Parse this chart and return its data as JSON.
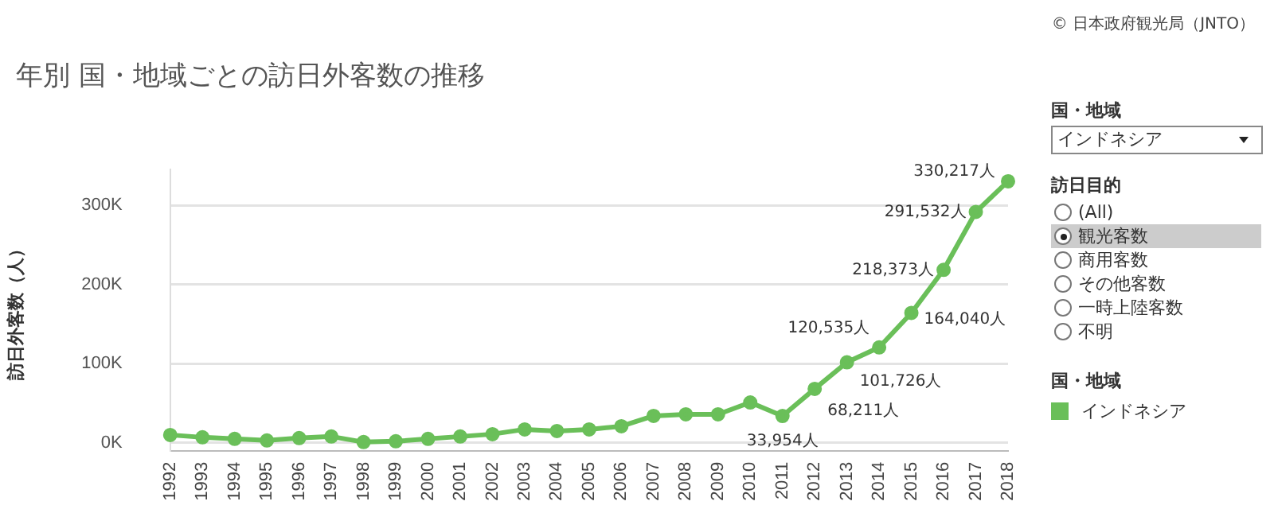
{
  "chart_data": {
    "type": "line",
    "title": "年別 国・地域ごとの訪日外客数の推移",
    "ylabel": "訪日外客数（人）",
    "legend_title": "国・地域",
    "legend": "right",
    "grid": "y",
    "marker": "circle",
    "line_style": "solid",
    "categories": [
      "1992",
      "1993",
      "1994",
      "1995",
      "1996",
      "1997",
      "1998",
      "1999",
      "2000",
      "2001",
      "2002",
      "2003",
      "2004",
      "2005",
      "2006",
      "2007",
      "2008",
      "2009",
      "2010",
      "2011",
      "2012",
      "2013",
      "2014",
      "2015",
      "2016",
      "2017",
      "2018"
    ],
    "series": [
      {
        "name": "インドネシア",
        "color": "#6abf59",
        "values": [
          10000,
          7000,
          5000,
          3000,
          6000,
          8000,
          1000,
          2000,
          5000,
          8000,
          11000,
          17000,
          15000,
          17000,
          21000,
          34000,
          36000,
          36000,
          51000,
          33954,
          68211,
          101726,
          120535,
          164040,
          218373,
          291532,
          330217
        ],
        "value_labels": [
          null,
          null,
          null,
          null,
          null,
          null,
          null,
          null,
          null,
          null,
          null,
          null,
          null,
          null,
          null,
          null,
          null,
          null,
          null,
          "33,954人",
          "68,211人",
          "101,726人",
          "120,535人",
          "164,040人",
          "218,373人",
          "291,532人",
          "330,217人"
        ]
      }
    ],
    "ylim": [
      -10000,
      345000
    ],
    "yticks": [
      {
        "value": 0,
        "label": "0K"
      },
      {
        "value": 100000,
        "label": "100K"
      },
      {
        "value": 200000,
        "label": "200K"
      },
      {
        "value": 300000,
        "label": "300K"
      }
    ],
    "annotations": [
      "© 日本政府観光局（JNTO）",
      "国・地域",
      "インドネシア",
      "訪日目的",
      "(All)",
      "観光客数",
      "商用客数",
      "その他客数",
      "一時上陸客数",
      "不明"
    ]
  }
}
